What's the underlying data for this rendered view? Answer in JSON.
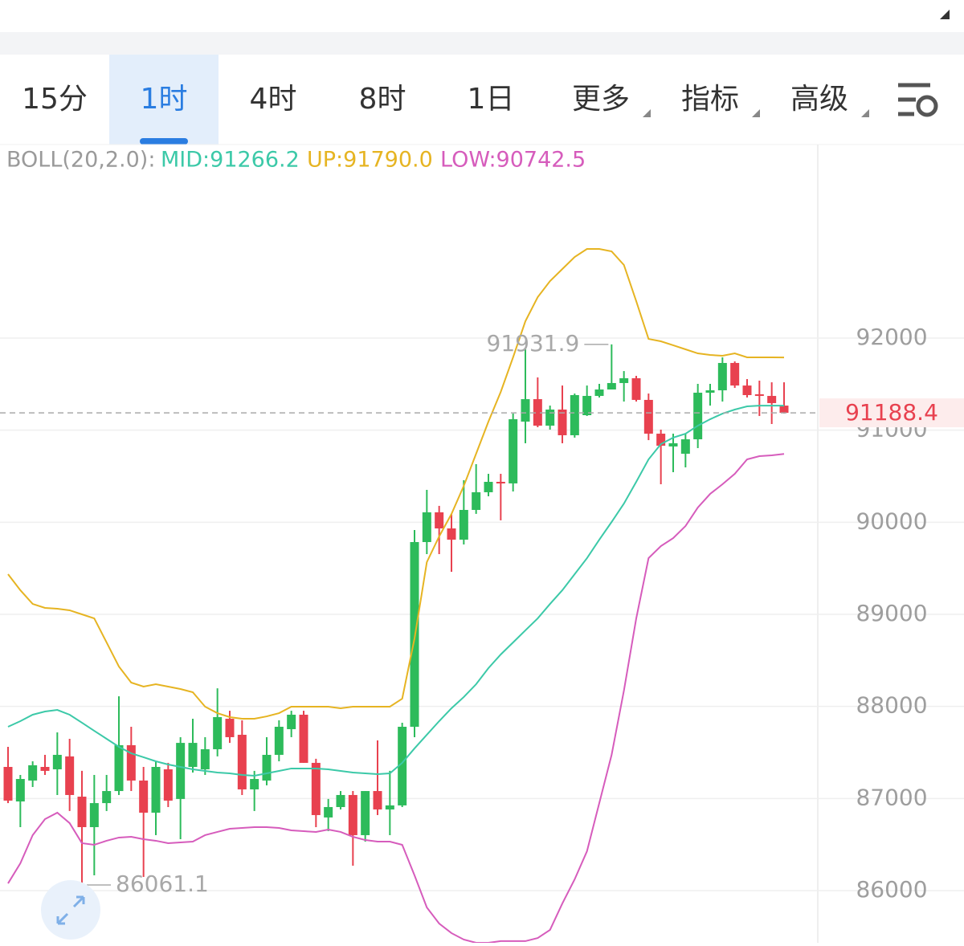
{
  "tabs": {
    "items": [
      "15分",
      "1时",
      "4时",
      "8时",
      "1日",
      "更多",
      "指标",
      "高级"
    ],
    "selected": 1
  },
  "chart_data": {
    "type": "candlestick",
    "indicator": "BOLL(20,2.0):",
    "open": [
      87343,
      86968,
      87195,
      87343,
      87317,
      87457,
      87020,
      86689,
      86950,
      87081,
      87579,
      87195,
      86846,
      87317,
      86995,
      87343,
      87317,
      87535,
      87866,
      87692,
      87099,
      87195,
      87474,
      87753,
      87910,
      87387,
      86794,
      86907,
      87038,
      86602,
      87081,
      86881,
      86925,
      87779,
      89785,
      90108,
      89933,
      89811,
      90134,
      90326,
      90439,
      90422,
      91093,
      91337,
      91049,
      91224,
      90945,
      91163,
      91372,
      91442,
      91512,
      91564,
      91329,
      90962,
      90823,
      90744,
      90901,
      91407,
      91433,
      91730,
      91485,
      91390,
      91372,
      91267
    ],
    "high": [
      87561,
      87256,
      87404,
      87474,
      87718,
      87648,
      87300,
      87256,
      87256,
      88110,
      87779,
      87343,
      87404,
      87387,
      87666,
      87866,
      87666,
      88197,
      87953,
      87849,
      87300,
      87666,
      87849,
      87953,
      87953,
      87431,
      86995,
      87081,
      87081,
      87081,
      87631,
      87300,
      87823,
      89916,
      90352,
      90178,
      90091,
      90457,
      90631,
      90526,
      90526,
      91180,
      91878,
      91573,
      91267,
      91485,
      91398,
      91485,
      91503,
      91931.9,
      91642,
      91590,
      91398,
      91006,
      90962,
      90962,
      91503,
      91503,
      91791,
      91747,
      91555,
      91538,
      91520,
      91520
    ],
    "low": [
      86950,
      86689,
      87125,
      87256,
      87038,
      86864,
      86061.1,
      86166,
      86864,
      87038,
      87081,
      86148,
      86602,
      86907,
      86558,
      87282,
      87256,
      87457,
      87604,
      87038,
      86864,
      87143,
      87404,
      87666,
      87387,
      86689,
      86646,
      86881,
      86270,
      86532,
      86820,
      86602,
      86907,
      87666,
      89654,
      89654,
      89462,
      89759,
      90091,
      90282,
      90021,
      90334,
      90858,
      91032,
      91006,
      90858,
      90919,
      91154,
      91355,
      91442,
      91311,
      91311,
      90892,
      90413,
      90544,
      90596,
      90805,
      91267,
      91311,
      91459,
      91355,
      91154,
      91067,
      91180
    ],
    "close": [
      86977,
      87212,
      87361,
      87300,
      87474,
      87038,
      86689,
      86950,
      87081,
      87579,
      87195,
      86846,
      87343,
      86977,
      87604,
      87604,
      87535,
      87884,
      87666,
      87099,
      87212,
      87474,
      87779,
      87910,
      87387,
      86820,
      86907,
      87038,
      86602,
      87081,
      86881,
      86925,
      87779,
      89785,
      90108,
      89933,
      89811,
      90134,
      90326,
      90439,
      90422,
      91119,
      91337,
      91049,
      91224,
      90945,
      91381,
      91372,
      91442,
      91512,
      91564,
      91329,
      90962,
      90831,
      90858,
      90901,
      91407,
      91433,
      91730,
      91485,
      91381,
      91372,
      91294,
      91188.4
    ],
    "up_color": "#2dbb5b",
    "down_color": "#e8414f",
    "series": [
      {
        "name": "MID:91266.2",
        "color": "#3cc9a8",
        "values": [
          87779,
          87840,
          87910,
          87945,
          87962,
          87910,
          87823,
          87735,
          87648,
          87561,
          87491,
          87448,
          87404,
          87369,
          87343,
          87317,
          87299,
          87282,
          87273,
          87256,
          87247,
          87273,
          87299,
          87326,
          87326,
          87326,
          87317,
          87299,
          87282,
          87273,
          87265,
          87273,
          87387,
          87544,
          87692,
          87840,
          87980,
          88102,
          88241,
          88416,
          88564,
          88695,
          88826,
          88956,
          89113,
          89262,
          89436,
          89610,
          89811,
          90003,
          90203,
          90439,
          90683,
          90849,
          90919,
          90962,
          91049,
          91119,
          91180,
          91224,
          91259,
          91267,
          91267,
          91266.2
        ]
      },
      {
        "name": "UP:91790.0",
        "color": "#e6b422",
        "values": [
          89436,
          89262,
          89113,
          89070,
          89061,
          89044,
          89000,
          88956,
          88695,
          88433,
          88259,
          88215,
          88241,
          88215,
          88189,
          88154,
          87997,
          87927,
          87884,
          87866,
          87866,
          87892,
          87927,
          87997,
          87997,
          87997,
          87997,
          87980,
          87997,
          87997,
          87997,
          87997,
          88084,
          88738,
          89567,
          89846,
          90090,
          90395,
          90744,
          91093,
          91416,
          91791,
          92183,
          92445,
          92619,
          92750,
          92881,
          92968,
          92968,
          92942,
          92794,
          92401,
          91991,
          91965,
          91922,
          91878,
          91834,
          91817,
          91808,
          91834,
          91791,
          91791,
          91791,
          91790.0
        ]
      },
      {
        "name": "LOW:90742.5",
        "color": "#d65cbc",
        "values": [
          86078,
          86296,
          86602,
          86776,
          86846,
          86733,
          86515,
          86497,
          86541,
          86576,
          86584,
          86558,
          86541,
          86515,
          86523,
          86532,
          86602,
          86637,
          86671,
          86680,
          86689,
          86689,
          86680,
          86654,
          86645,
          86637,
          86663,
          86637,
          86584,
          86549,
          86532,
          86532,
          86497,
          86166,
          85817,
          85642,
          85538,
          85468,
          85433,
          85433,
          85451,
          85451,
          85451,
          85485,
          85573,
          85860,
          86122,
          86427,
          86951,
          87474,
          88172,
          88956,
          89610,
          89741,
          89828,
          89959,
          90160,
          90308,
          90413,
          90526,
          90683,
          90718,
          90727,
          90742.5
        ]
      }
    ],
    "ylim": [
      85433,
      94102
    ],
    "yticks": [
      86000,
      87000,
      88000,
      89000,
      90000,
      91000,
      92000
    ],
    "grid": true
  }
}
